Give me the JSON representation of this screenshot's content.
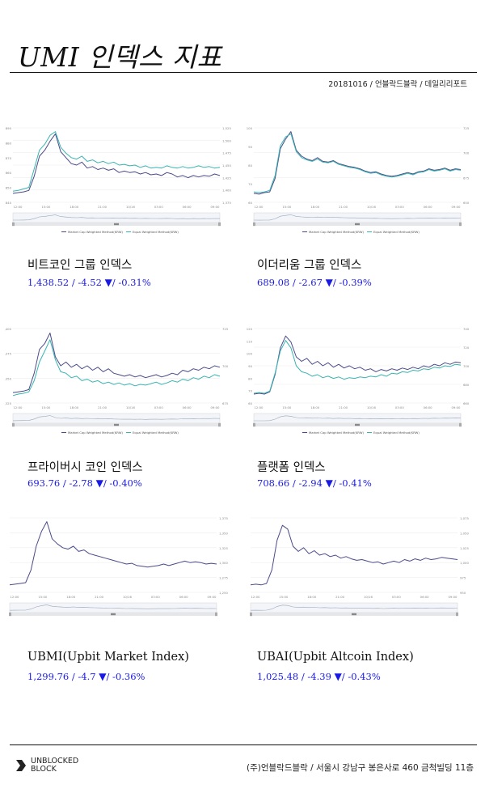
{
  "title": "UMI 인덱스 지표",
  "dateline": "20181016 / 언블락드블락 / 데일리리포트",
  "legend": {
    "mcw": "Market Cap Weighted Method(KRW)",
    "ew": "Equal Weighted Method(KRW)"
  },
  "colors": {
    "mcw": "#4a4a8a",
    "ew": "#38b4b0",
    "value_text": "#1a1ae6"
  },
  "footer": {
    "logo_line1": "UNBLOCKED",
    "logo_line2": "BLOCK",
    "address": "(주)언블락드블락 / 서울시 강남구 봉은사로 460 금척빌딩 11층"
  },
  "panels": [
    {
      "name": "비트코인 그룹 인덱스",
      "value": "1,438.52",
      "change": "-4.52",
      "pct": "-0.31%",
      "arrow": "▼"
    },
    {
      "name": "이더리움 그룹 인덱스",
      "value": "689.08",
      "change": "-2.67",
      "pct": "-0.39%",
      "arrow": "▼"
    },
    {
      "name": "프라이버시 코인 인덱스",
      "value": "693.76",
      "change": "-2.78",
      "pct": "-0.40%",
      "arrow": "▼"
    },
    {
      "name": "플랫폼 인덱스",
      "value": "708.66",
      "change": "-2.94",
      "pct": "-0.41%",
      "arrow": "▼"
    },
    {
      "name": "UBMI(Upbit Market Index)",
      "value": "1,299.76",
      "change": "-4.7",
      "pct": "-0.36%",
      "arrow": "▼"
    },
    {
      "name": "UBAI(Upbit Altcoin Index)",
      "value": "1,025.48",
      "change": "-4.39",
      "pct": "-0.43%",
      "arrow": "▼"
    }
  ],
  "chart_data": [
    {
      "type": "line",
      "title": "",
      "x_ticks": [
        "12:00",
        "15:00",
        "18:00",
        "21:00",
        "10/16",
        "03:00",
        "06:00",
        "09:00"
      ],
      "y_left_ticks": [
        "840",
        "850",
        "860",
        "870",
        "880",
        "890"
      ],
      "y_right_ticks": [
        "1,375",
        "1,400",
        "1,425",
        "1,450",
        "1,475",
        "1,500",
        "1,525"
      ],
      "series": [
        {
          "name": "Market Cap Weighted Method(KRW)",
          "values": [
            0.12,
            0.13,
            0.14,
            0.16,
            0.35,
            0.62,
            0.7,
            0.82,
            0.92,
            0.68,
            0.6,
            0.52,
            0.5,
            0.54,
            0.46,
            0.48,
            0.44,
            0.46,
            0.43,
            0.45,
            0.4,
            0.42,
            0.4,
            0.41,
            0.38,
            0.4,
            0.37,
            0.38,
            0.36,
            0.4,
            0.38,
            0.34,
            0.36,
            0.33,
            0.36,
            0.34,
            0.36,
            0.35,
            0.38,
            0.36
          ]
        },
        {
          "name": "Equal Weighted Method(KRW)",
          "values": [
            0.15,
            0.16,
            0.18,
            0.2,
            0.45,
            0.7,
            0.78,
            0.9,
            0.95,
            0.74,
            0.66,
            0.6,
            0.58,
            0.62,
            0.55,
            0.57,
            0.53,
            0.55,
            0.52,
            0.54,
            0.5,
            0.51,
            0.49,
            0.5,
            0.47,
            0.49,
            0.46,
            0.47,
            0.46,
            0.49,
            0.47,
            0.46,
            0.48,
            0.46,
            0.47,
            0.49,
            0.47,
            0.48,
            0.46,
            0.47
          ]
        }
      ]
    },
    {
      "type": "line",
      "title": "",
      "x_ticks": [
        "12:00",
        "15:00",
        "18:00",
        "21:00",
        "10/16",
        "03:00",
        "06:00",
        "09:00"
      ],
      "y_left_ticks": [
        "60",
        "70",
        "80",
        "90",
        "100"
      ],
      "y_right_ticks": [
        "650",
        "675",
        "700",
        "725"
      ],
      "series": [
        {
          "name": "Market Cap Weighted Method(KRW)",
          "values": [
            0.12,
            0.11,
            0.13,
            0.14,
            0.32,
            0.72,
            0.85,
            0.95,
            0.7,
            0.62,
            0.58,
            0.56,
            0.6,
            0.55,
            0.54,
            0.56,
            0.52,
            0.5,
            0.48,
            0.47,
            0.45,
            0.42,
            0.4,
            0.41,
            0.38,
            0.36,
            0.35,
            0.36,
            0.38,
            0.4,
            0.38,
            0.41,
            0.42,
            0.45,
            0.43,
            0.44,
            0.46,
            0.43,
            0.45,
            0.44
          ]
        },
        {
          "name": "Equal Weighted Method(KRW)",
          "values": [
            0.14,
            0.13,
            0.14,
            0.16,
            0.36,
            0.76,
            0.88,
            0.92,
            0.68,
            0.6,
            0.57,
            0.55,
            0.58,
            0.54,
            0.53,
            0.55,
            0.51,
            0.49,
            0.47,
            0.46,
            0.44,
            0.41,
            0.39,
            0.4,
            0.37,
            0.35,
            0.34,
            0.35,
            0.37,
            0.39,
            0.37,
            0.4,
            0.41,
            0.44,
            0.42,
            0.43,
            0.45,
            0.42,
            0.44,
            0.43
          ]
        }
      ]
    },
    {
      "type": "line",
      "title": "",
      "x_ticks": [
        "12:00",
        "15:00",
        "18:00",
        "21:00",
        "10/16",
        "03:00",
        "06:00",
        "09:00"
      ],
      "y_left_ticks": [
        "1,325",
        "1,350",
        "1,375",
        "1,400"
      ],
      "y_right_ticks": [
        "675",
        "700",
        "725"
      ],
      "series": [
        {
          "name": "Market Cap Weighted Method(KRW)",
          "values": [
            0.14,
            0.15,
            0.16,
            0.18,
            0.4,
            0.72,
            0.8,
            0.94,
            0.62,
            0.5,
            0.55,
            0.48,
            0.52,
            0.46,
            0.5,
            0.44,
            0.48,
            0.42,
            0.46,
            0.4,
            0.38,
            0.36,
            0.38,
            0.35,
            0.37,
            0.34,
            0.36,
            0.38,
            0.35,
            0.37,
            0.4,
            0.38,
            0.44,
            0.42,
            0.46,
            0.44,
            0.48,
            0.46,
            0.5,
            0.48
          ]
        },
        {
          "name": "Equal Weighted Method(KRW)",
          "values": [
            0.1,
            0.12,
            0.13,
            0.15,
            0.3,
            0.55,
            0.7,
            0.85,
            0.58,
            0.42,
            0.4,
            0.34,
            0.36,
            0.3,
            0.32,
            0.28,
            0.3,
            0.26,
            0.28,
            0.25,
            0.27,
            0.24,
            0.26,
            0.23,
            0.25,
            0.24,
            0.26,
            0.28,
            0.25,
            0.27,
            0.3,
            0.28,
            0.32,
            0.3,
            0.34,
            0.32,
            0.36,
            0.34,
            0.38,
            0.36
          ]
        }
      ]
    },
    {
      "type": "line",
      "title": "",
      "x_ticks": [
        "12:00",
        "15:00",
        "18:00",
        "21:00",
        "10/16",
        "03:00",
        "06:00",
        "09:00"
      ],
      "y_left_ticks": [
        "60",
        "70",
        "80",
        "90",
        "100",
        "110",
        "120"
      ],
      "y_right_ticks": [
        "660",
        "680",
        "700",
        "720",
        "740"
      ],
      "series": [
        {
          "name": "Market Cap Weighted Method(KRW)",
          "values": [
            0.12,
            0.13,
            0.12,
            0.15,
            0.38,
            0.74,
            0.9,
            0.82,
            0.62,
            0.56,
            0.6,
            0.52,
            0.56,
            0.5,
            0.54,
            0.48,
            0.52,
            0.47,
            0.5,
            0.46,
            0.48,
            0.44,
            0.46,
            0.42,
            0.45,
            0.43,
            0.46,
            0.44,
            0.47,
            0.45,
            0.48,
            0.46,
            0.5,
            0.48,
            0.52,
            0.5,
            0.54,
            0.52,
            0.55,
            0.54
          ]
        },
        {
          "name": "Equal Weighted Method(KRW)",
          "values": [
            0.13,
            0.14,
            0.13,
            0.16,
            0.4,
            0.7,
            0.84,
            0.74,
            0.5,
            0.42,
            0.4,
            0.36,
            0.38,
            0.34,
            0.36,
            0.33,
            0.35,
            0.32,
            0.34,
            0.33,
            0.35,
            0.34,
            0.36,
            0.35,
            0.38,
            0.36,
            0.4,
            0.39,
            0.42,
            0.41,
            0.44,
            0.43,
            0.46,
            0.45,
            0.48,
            0.47,
            0.5,
            0.49,
            0.52,
            0.51
          ]
        }
      ]
    },
    {
      "type": "line",
      "title": "",
      "x_ticks": [
        "12:00",
        "15:00",
        "18:00",
        "21:00",
        "10/16",
        "03:00",
        "06:00",
        "09:00"
      ],
      "y_left_ticks": [],
      "y_right_ticks": [
        "1,250",
        "1,275",
        "1,300",
        "1,325",
        "1,350",
        "1,375"
      ],
      "series": [
        {
          "name": "UBMI",
          "values": [
            0.1,
            0.11,
            0.12,
            0.13,
            0.3,
            0.62,
            0.82,
            0.95,
            0.72,
            0.65,
            0.6,
            0.58,
            0.62,
            0.55,
            0.57,
            0.52,
            0.5,
            0.48,
            0.46,
            0.44,
            0.42,
            0.4,
            0.38,
            0.39,
            0.36,
            0.35,
            0.34,
            0.35,
            0.36,
            0.38,
            0.36,
            0.38,
            0.4,
            0.42,
            0.4,
            0.41,
            0.4,
            0.38,
            0.39,
            0.38
          ]
        }
      ]
    },
    {
      "type": "line",
      "title": "",
      "x_ticks": [
        "12:00",
        "15:00",
        "18:00",
        "21:00",
        "10/16",
        "03:00",
        "06:00",
        "09:00"
      ],
      "y_left_ticks": [],
      "y_right_ticks": [
        "950",
        "975",
        "1,000",
        "1,025",
        "1,050",
        "1,075"
      ],
      "series": [
        {
          "name": "UBAI",
          "values": [
            0.1,
            0.11,
            0.1,
            0.12,
            0.3,
            0.7,
            0.9,
            0.85,
            0.62,
            0.55,
            0.6,
            0.52,
            0.56,
            0.5,
            0.52,
            0.48,
            0.5,
            0.46,
            0.48,
            0.45,
            0.43,
            0.44,
            0.42,
            0.4,
            0.41,
            0.38,
            0.4,
            0.42,
            0.4,
            0.44,
            0.42,
            0.45,
            0.43,
            0.46,
            0.44,
            0.45,
            0.47,
            0.46,
            0.45,
            0.44
          ]
        }
      ]
    }
  ]
}
